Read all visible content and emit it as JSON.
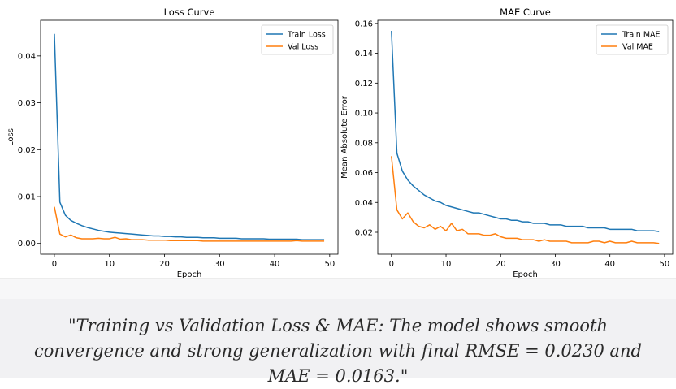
{
  "chart_data": [
    {
      "type": "line",
      "title": "Loss Curve",
      "xlabel": "Epoch",
      "ylabel": "Loss",
      "xlim": [
        -2.5,
        51.5
      ],
      "ylim": [
        -0.0023,
        0.0476
      ],
      "xticks": [
        0,
        10,
        20,
        30,
        40,
        50
      ],
      "xtick_labels": [
        "0",
        "10",
        "20",
        "30",
        "40",
        "50"
      ],
      "yticks": [
        0,
        0.01,
        0.02,
        0.03,
        0.04
      ],
      "ytick_labels": [
        "0.00",
        "0.01",
        "0.02",
        "0.03",
        "0.04"
      ],
      "legend_position": "upper right",
      "grid": false,
      "x": [
        0,
        1,
        2,
        3,
        4,
        5,
        6,
        7,
        8,
        9,
        10,
        11,
        12,
        13,
        14,
        15,
        16,
        17,
        18,
        19,
        20,
        21,
        22,
        23,
        24,
        25,
        26,
        27,
        28,
        29,
        30,
        31,
        32,
        33,
        34,
        35,
        36,
        37,
        38,
        39,
        40,
        41,
        42,
        43,
        44,
        45,
        46,
        47,
        48,
        49
      ],
      "series": [
        {
          "name": "Train Loss",
          "color": "#1f77b4",
          "values": [
            0.0447,
            0.0088,
            0.006,
            0.0049,
            0.0043,
            0.0038,
            0.0034,
            0.0031,
            0.0028,
            0.0026,
            0.0024,
            0.0023,
            0.0022,
            0.0021,
            0.002,
            0.0019,
            0.0018,
            0.0017,
            0.0016,
            0.0016,
            0.0015,
            0.0015,
            0.0014,
            0.0014,
            0.0013,
            0.0013,
            0.0013,
            0.0012,
            0.0012,
            0.0012,
            0.0011,
            0.0011,
            0.0011,
            0.0011,
            0.001,
            0.001,
            0.001,
            0.001,
            0.001,
            0.0009,
            0.0009,
            0.0009,
            0.0009,
            0.0009,
            0.0009,
            0.0008,
            0.0008,
            0.0008,
            0.0008,
            0.0008
          ]
        },
        {
          "name": "Val Loss",
          "color": "#ff7f0e",
          "values": [
            0.0078,
            0.002,
            0.0014,
            0.0018,
            0.0012,
            0.001,
            0.001,
            0.001,
            0.0011,
            0.001,
            0.001,
            0.0013,
            0.0009,
            0.001,
            0.0008,
            0.0008,
            0.0008,
            0.0007,
            0.0007,
            0.0007,
            0.0007,
            0.0006,
            0.0006,
            0.0006,
            0.0006,
            0.0006,
            0.0006,
            0.0005,
            0.0005,
            0.0005,
            0.0005,
            0.0005,
            0.0005,
            0.0005,
            0.0005,
            0.0005,
            0.0005,
            0.0005,
            0.0005,
            0.0005,
            0.0005,
            0.0005,
            0.0005,
            0.0005,
            0.0006,
            0.0005,
            0.0005,
            0.0005,
            0.0005,
            0.0005
          ]
        }
      ]
    },
    {
      "type": "line",
      "title": "MAE Curve",
      "xlabel": "Epoch",
      "ylabel": "Mean Absolute Error",
      "xlim": [
        -2.5,
        51.5
      ],
      "ylim": [
        0.0053,
        0.1621
      ],
      "xticks": [
        0,
        10,
        20,
        30,
        40,
        50
      ],
      "xtick_labels": [
        "0",
        "10",
        "20",
        "30",
        "40",
        "50"
      ],
      "yticks": [
        0.02,
        0.04,
        0.06,
        0.08,
        0.1,
        0.12,
        0.14,
        0.16
      ],
      "ytick_labels": [
        "0.02",
        "0.04",
        "0.06",
        "0.08",
        "0.10",
        "0.12",
        "0.14",
        "0.16"
      ],
      "legend_position": "upper right",
      "grid": false,
      "x": [
        0,
        1,
        2,
        3,
        4,
        5,
        6,
        7,
        8,
        9,
        10,
        11,
        12,
        13,
        14,
        15,
        16,
        17,
        18,
        19,
        20,
        21,
        22,
        23,
        24,
        25,
        26,
        27,
        28,
        29,
        30,
        31,
        32,
        33,
        34,
        35,
        36,
        37,
        38,
        39,
        40,
        41,
        42,
        43,
        44,
        45,
        46,
        47,
        48,
        49
      ],
      "series": [
        {
          "name": "Train MAE",
          "color": "#1f77b4",
          "values": [
            0.155,
            0.073,
            0.061,
            0.055,
            0.051,
            0.048,
            0.045,
            0.043,
            0.041,
            0.04,
            0.038,
            0.037,
            0.036,
            0.035,
            0.034,
            0.033,
            0.033,
            0.032,
            0.031,
            0.03,
            0.029,
            0.029,
            0.028,
            0.028,
            0.027,
            0.027,
            0.026,
            0.026,
            0.026,
            0.025,
            0.025,
            0.025,
            0.024,
            0.024,
            0.024,
            0.024,
            0.023,
            0.023,
            0.023,
            0.023,
            0.022,
            0.022,
            0.022,
            0.022,
            0.022,
            0.021,
            0.021,
            0.021,
            0.021,
            0.0205
          ]
        },
        {
          "name": "Val MAE",
          "color": "#ff7f0e",
          "values": [
            0.071,
            0.035,
            0.029,
            0.033,
            0.027,
            0.024,
            0.023,
            0.025,
            0.022,
            0.024,
            0.021,
            0.026,
            0.021,
            0.022,
            0.019,
            0.019,
            0.019,
            0.018,
            0.018,
            0.019,
            0.017,
            0.016,
            0.016,
            0.016,
            0.015,
            0.015,
            0.015,
            0.014,
            0.015,
            0.014,
            0.014,
            0.014,
            0.014,
            0.013,
            0.013,
            0.013,
            0.013,
            0.014,
            0.014,
            0.013,
            0.014,
            0.013,
            0.013,
            0.013,
            0.014,
            0.013,
            0.013,
            0.013,
            0.013,
            0.0125
          ]
        }
      ]
    }
  ],
  "caption": "\"Training vs Validation Loss & MAE: The model shows smooth convergence and strong generalization with final RMSE = 0.0230 and MAE = 0.0163.\""
}
